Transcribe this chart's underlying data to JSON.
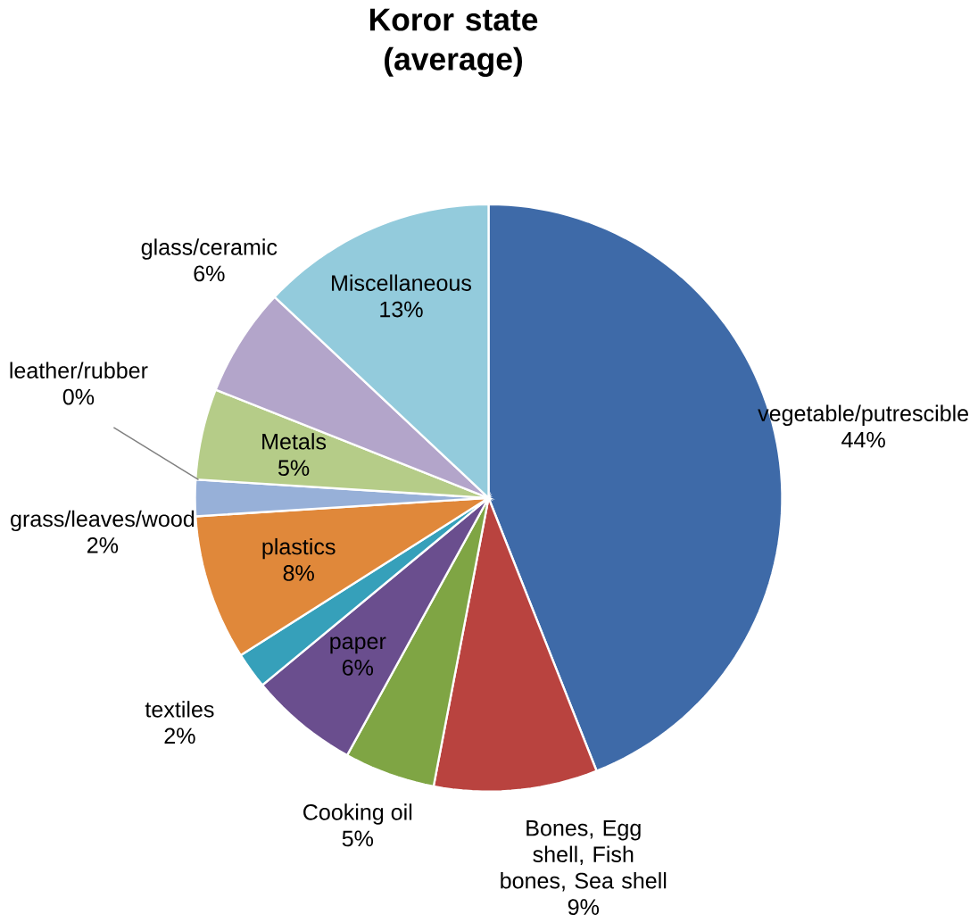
{
  "chart_data": {
    "type": "pie",
    "title": "Koror state (average)",
    "categories": [
      "vegetable/putrescible",
      "Bones, Egg shell, Fish bones, Sea shell",
      "Cooking oil",
      "paper",
      "textiles",
      "plastics",
      "grass/leaves/wood",
      "leather/rubber",
      "Metals",
      "glass/ceramic",
      "Miscellaneous"
    ],
    "values": [
      44,
      9,
      5,
      6,
      2,
      8,
      2,
      0,
      5,
      6,
      13
    ],
    "value_labels": [
      "44%",
      "9%",
      "5%",
      "6%",
      "2%",
      "8%",
      "2%",
      "0%",
      "5%",
      "6%",
      "13%"
    ],
    "colors": [
      "#3e6aa8",
      "#b9433f",
      "#7fa544",
      "#6a4e8e",
      "#36a0ba",
      "#e0883a",
      "#97b0d8",
      "#c08a86",
      "#b5cc88",
      "#b3a5ca",
      "#93cbdc"
    ]
  }
}
